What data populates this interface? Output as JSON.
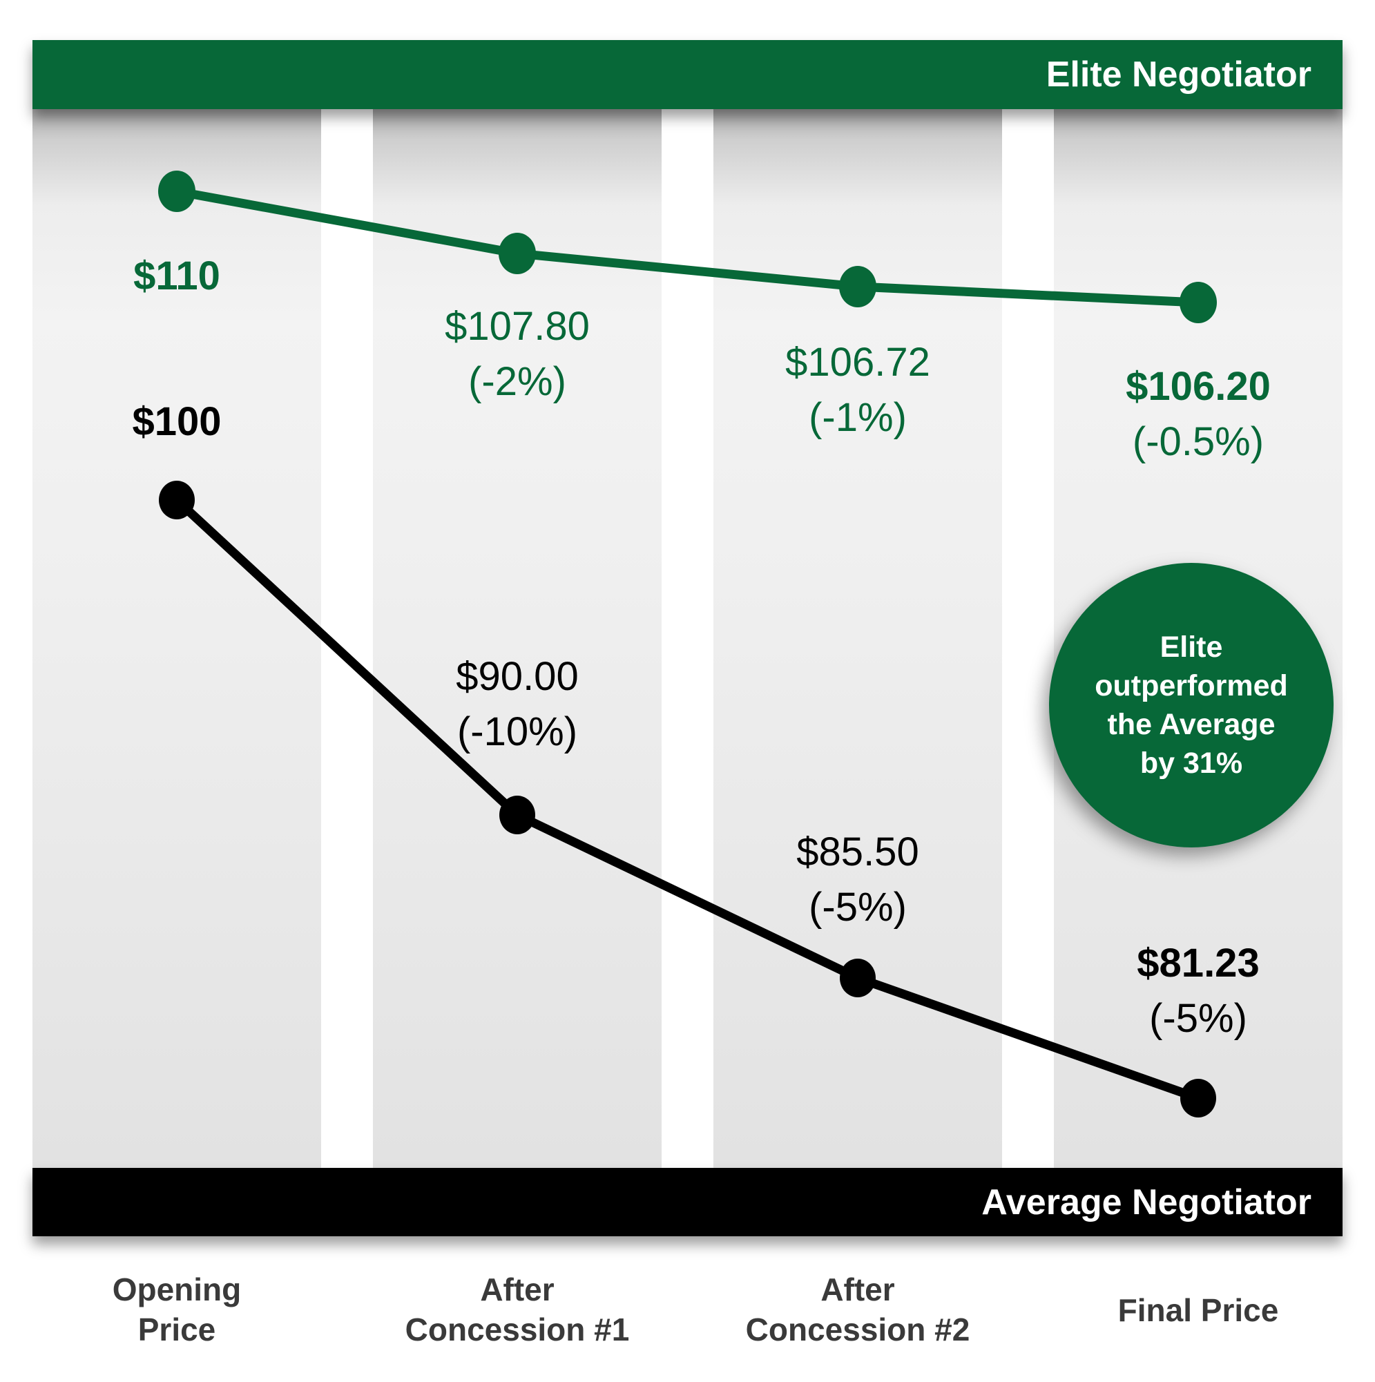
{
  "banners": {
    "elite": {
      "label": "Elite Negotiator"
    },
    "average": {
      "label": "Average Negotiator"
    }
  },
  "badge": {
    "lines": [
      "Elite",
      "outperformed",
      "the Average",
      "by 31%"
    ]
  },
  "chart_data": {
    "type": "line",
    "categories": [
      "Opening Price",
      "After Concession #1",
      "After Concession #2",
      "Final Price"
    ],
    "series": [
      {
        "name": "Elite Negotiator",
        "color": "#076838",
        "values": [
          110,
          107.8,
          106.72,
          106.2
        ],
        "points": [
          {
            "value_label": "$110",
            "pct_label": ""
          },
          {
            "value_label": "$107.80",
            "pct_label": "(-2%)"
          },
          {
            "value_label": "$106.72",
            "pct_label": "(-1%)"
          },
          {
            "value_label": "$106.20",
            "pct_label": "(-0.5%)"
          }
        ]
      },
      {
        "name": "Average Negotiator",
        "color": "#000000",
        "values": [
          100,
          90.0,
          85.5,
          81.23
        ],
        "points": [
          {
            "value_label": "$100",
            "pct_label": ""
          },
          {
            "value_label": "$90.00",
            "pct_label": "(-10%)"
          },
          {
            "value_label": "$85.50",
            "pct_label": "(-5%)"
          },
          {
            "value_label": "$81.23",
            "pct_label": "(-5%)"
          }
        ]
      }
    ],
    "annotation": "Elite outperformed the Average by 31%",
    "axis_labels": [
      {
        "lines": [
          "Opening",
          "Price"
        ]
      },
      {
        "lines": [
          "After",
          "Concession #1"
        ]
      },
      {
        "lines": [
          "After",
          "Concession #2"
        ]
      },
      {
        "lines": [
          "Final Price"
        ]
      }
    ],
    "grid": "off",
    "legend_position": "banner-strips"
  },
  "colors": {
    "elite_green": "#076838",
    "average_black": "#000000",
    "axis_text": "#3a3a3a"
  }
}
